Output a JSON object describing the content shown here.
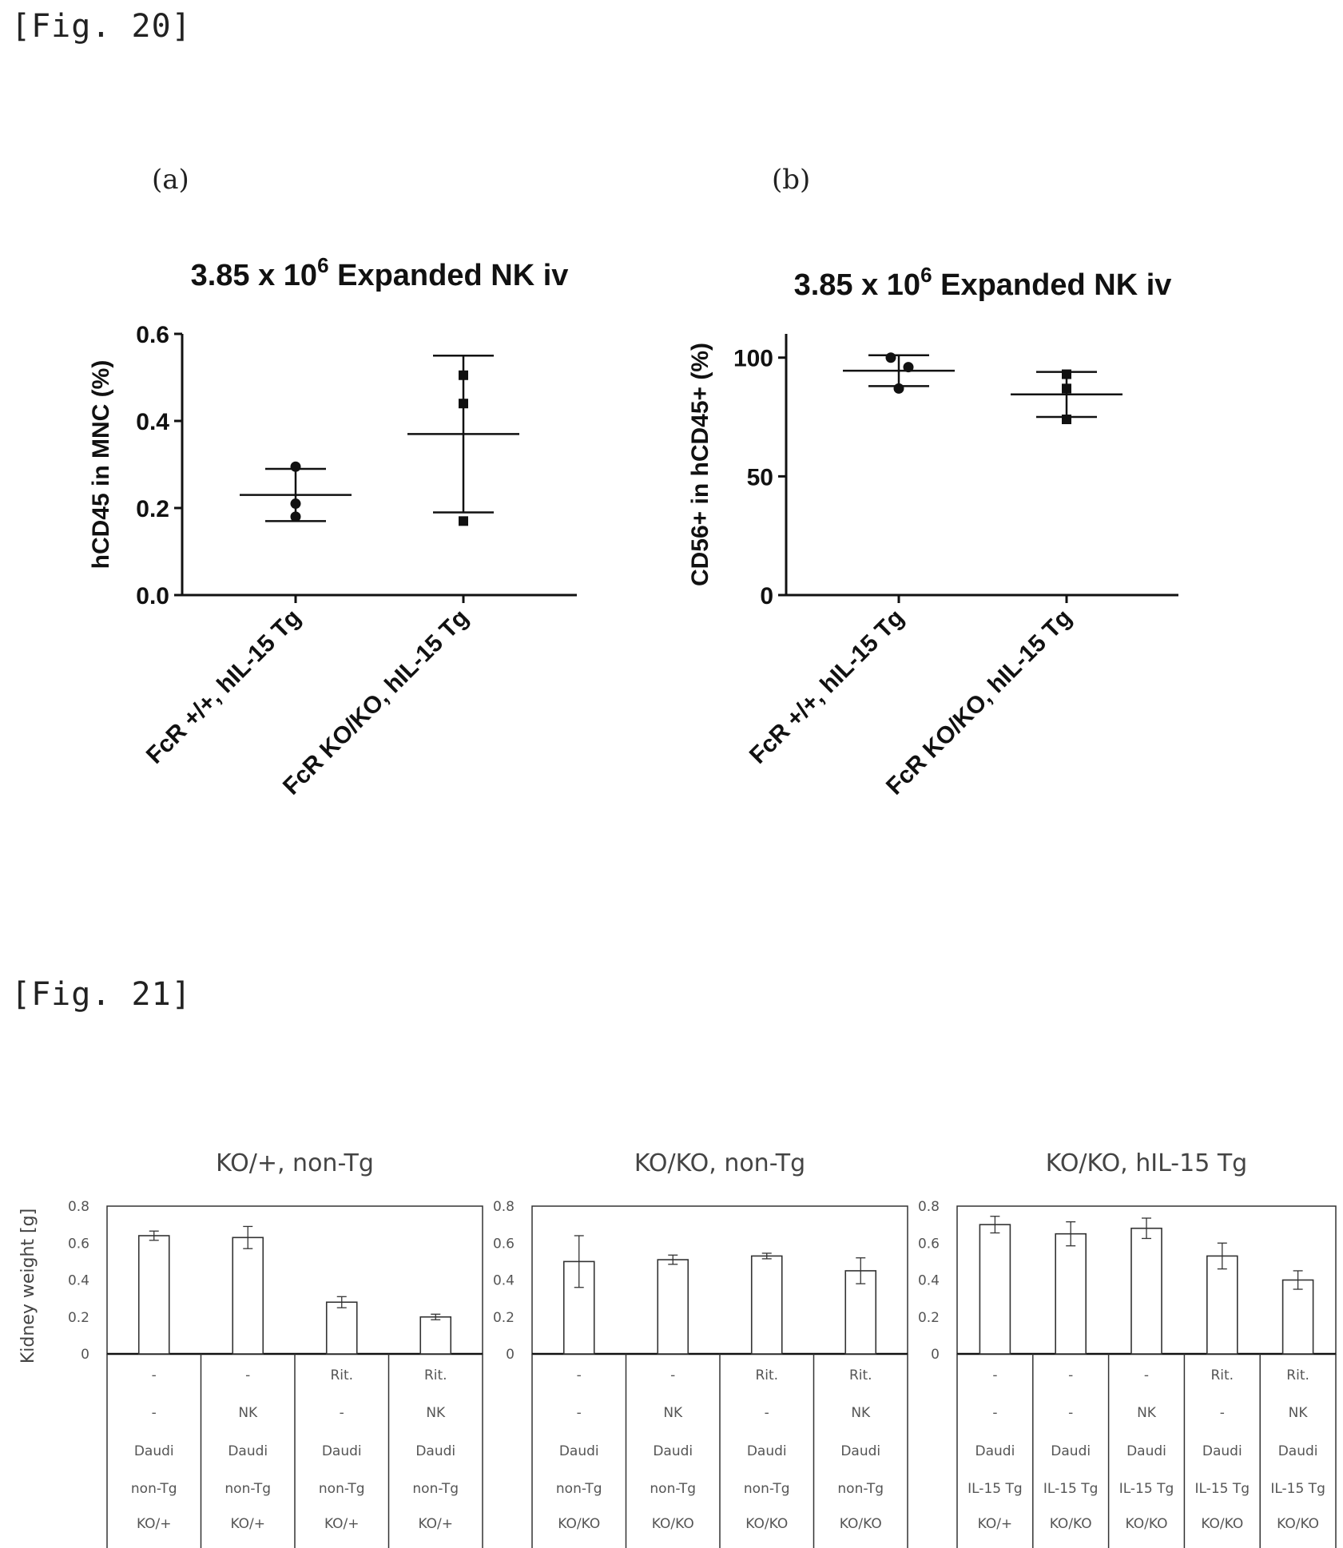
{
  "fig20": {
    "label": "[Fig. 20]",
    "panels": [
      {
        "letter": "(a)",
        "title_main": "3.85 x 10",
        "title_sup": "6",
        "title_rest": " Expanded NK iv"
      },
      {
        "letter": "(b)",
        "title_main": "3.85 x 10",
        "title_sup": "6",
        "title_rest": " Expanded NK iv"
      }
    ]
  },
  "fig21": {
    "label": "[Fig. 21]",
    "ylabel": "Kidney weight [g]"
  },
  "chart_data": [
    {
      "type": "scatter",
      "panel": "(a)",
      "title": "3.85 x 10^6 Expanded NK iv",
      "ylabel": "hCD45 in MNC (%)",
      "xlabel": "",
      "ylim": [
        0,
        0.6
      ],
      "yticks": [
        "0.0",
        "0.2",
        "0.4",
        "0.6"
      ],
      "categories": [
        "FcR +/+, hIL-15 Tg",
        "FcR KO/KO, hIL-15 Tg"
      ],
      "markers": [
        "circle",
        "square"
      ],
      "series": [
        {
          "category": "FcR +/+, hIL-15 Tg",
          "points": [
            0.295,
            0.21,
            0.18
          ],
          "mean": 0.23,
          "upper": 0.29,
          "lower": 0.17
        },
        {
          "category": "FcR KO/KO, hIL-15 Tg",
          "points": [
            0.505,
            0.44,
            0.17
          ],
          "mean": 0.37,
          "upper": 0.55,
          "lower": 0.19
        }
      ]
    },
    {
      "type": "scatter",
      "panel": "(b)",
      "title": "3.85 x 10^6 Expanded NK iv",
      "ylabel": "CD56+ in hCD45+ (%)",
      "xlabel": "",
      "ylim": [
        0,
        110
      ],
      "yticks": [
        "0",
        "50",
        "100"
      ],
      "categories": [
        "FcR +/+, hIL-15 Tg",
        "FcR KO/KO, hIL-15 Tg"
      ],
      "markers": [
        "circle",
        "square"
      ],
      "series": [
        {
          "category": "FcR +/+, hIL-15 Tg",
          "points": [
            100,
            96,
            87
          ],
          "mean": 94.5,
          "upper": 101,
          "lower": 88
        },
        {
          "category": "FcR KO/KO, hIL-15 Tg",
          "points": [
            93,
            87,
            74
          ],
          "mean": 84.5,
          "upper": 94,
          "lower": 75
        }
      ]
    },
    {
      "type": "bar",
      "title": "KO/+, non-Tg",
      "ylabel": "Kidney weight [g]",
      "ylim": [
        0,
        0.8
      ],
      "yticks": [
        "0",
        "0.2",
        "0.4",
        "0.6",
        "0.8"
      ],
      "values": [
        0.64,
        0.63,
        0.28,
        0.2
      ],
      "errors": [
        0.025,
        0.06,
        0.03,
        0.015
      ],
      "table_rows": [
        [
          "-",
          "-",
          "Rit.",
          "Rit."
        ],
        [
          "-",
          "NK",
          "-",
          "NK"
        ],
        [
          "Daudi",
          "Daudi",
          "Daudi",
          "Daudi"
        ],
        [
          "non-Tg",
          "non-Tg",
          "non-Tg",
          "non-Tg"
        ],
        [
          "KO/+",
          "KO/+",
          "KO/+",
          "KO/+"
        ]
      ]
    },
    {
      "type": "bar",
      "title": "KO/KO, non-Tg",
      "ylabel": "",
      "ylim": [
        0,
        0.8
      ],
      "yticks": [
        "0",
        "0.2",
        "0.4",
        "0.6",
        "0.8"
      ],
      "values": [
        0.5,
        0.51,
        0.53,
        0.45
      ],
      "errors": [
        0.14,
        0.025,
        0.015,
        0.07
      ],
      "table_rows": [
        [
          "-",
          "-",
          "Rit.",
          "Rit."
        ],
        [
          "-",
          "NK",
          "-",
          "NK"
        ],
        [
          "Daudi",
          "Daudi",
          "Daudi",
          "Daudi"
        ],
        [
          "non-Tg",
          "non-Tg",
          "non-Tg",
          "non-Tg"
        ],
        [
          "KO/KO",
          "KO/KO",
          "KO/KO",
          "KO/KO"
        ]
      ]
    },
    {
      "type": "bar",
      "title": "KO/KO, hIL-15 Tg",
      "ylabel": "",
      "ylim": [
        0,
        0.8
      ],
      "yticks": [
        "0",
        "0.2",
        "0.4",
        "0.6",
        "0.8"
      ],
      "values": [
        0.7,
        0.65,
        0.68,
        0.53,
        0.4
      ],
      "errors": [
        0.045,
        0.065,
        0.055,
        0.07,
        0.05
      ],
      "table_rows": [
        [
          "-",
          "-",
          "-",
          "Rit.",
          "Rit."
        ],
        [
          "-",
          "-",
          "NK",
          "-",
          "NK"
        ],
        [
          "Daudi",
          "Daudi",
          "Daudi",
          "Daudi",
          "Daudi"
        ],
        [
          "IL-15 Tg",
          "IL-15 Tg",
          "IL-15 Tg",
          "IL-15 Tg",
          "IL-15 Tg"
        ],
        [
          "KO/+",
          "KO/KO",
          "KO/KO",
          "KO/KO",
          "KO/KO"
        ]
      ]
    }
  ]
}
